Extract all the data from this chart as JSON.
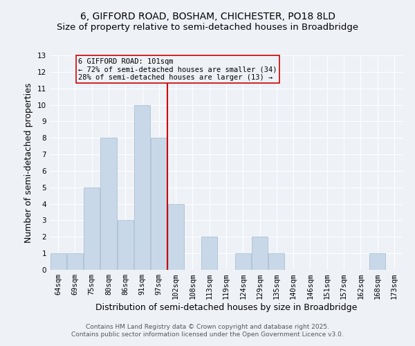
{
  "title_line1": "6, GIFFORD ROAD, BOSHAM, CHICHESTER, PO18 8LD",
  "title_line2": "Size of property relative to semi-detached houses in Broadbridge",
  "xlabel": "Distribution of semi-detached houses by size in Broadbridge",
  "ylabel": "Number of semi-detached properties",
  "categories": [
    "64sqm",
    "69sqm",
    "75sqm",
    "80sqm",
    "86sqm",
    "91sqm",
    "97sqm",
    "102sqm",
    "108sqm",
    "113sqm",
    "119sqm",
    "124sqm",
    "129sqm",
    "135sqm",
    "140sqm",
    "146sqm",
    "151sqm",
    "157sqm",
    "162sqm",
    "168sqm",
    "173sqm"
  ],
  "values": [
    1,
    1,
    5,
    8,
    3,
    10,
    8,
    4,
    0,
    2,
    0,
    1,
    2,
    1,
    0,
    0,
    0,
    0,
    0,
    1,
    0
  ],
  "bar_color": "#c8d8e8",
  "bar_edgecolor": "#a0b8cc",
  "vline_index": 7,
  "vline_color": "#cc0000",
  "annotation_text_line1": "6 GIFFORD ROAD: 101sqm",
  "annotation_text_line2": "← 72% of semi-detached houses are smaller (34)",
  "annotation_text_line3": "28% of semi-detached houses are larger (13) →",
  "ylim": [
    0,
    13
  ],
  "yticks": [
    0,
    1,
    2,
    3,
    4,
    5,
    6,
    7,
    8,
    9,
    10,
    11,
    12,
    13
  ],
  "background_color": "#eef2f7",
  "grid_color": "#ffffff",
  "footer_line1": "Contains HM Land Registry data © Crown copyright and database right 2025.",
  "footer_line2": "Contains public sector information licensed under the Open Government Licence v3.0.",
  "title_fontsize": 10,
  "subtitle_fontsize": 9.5,
  "axis_label_fontsize": 9,
  "tick_fontsize": 7.5,
  "annotation_fontsize": 7.5,
  "footer_fontsize": 6.5
}
